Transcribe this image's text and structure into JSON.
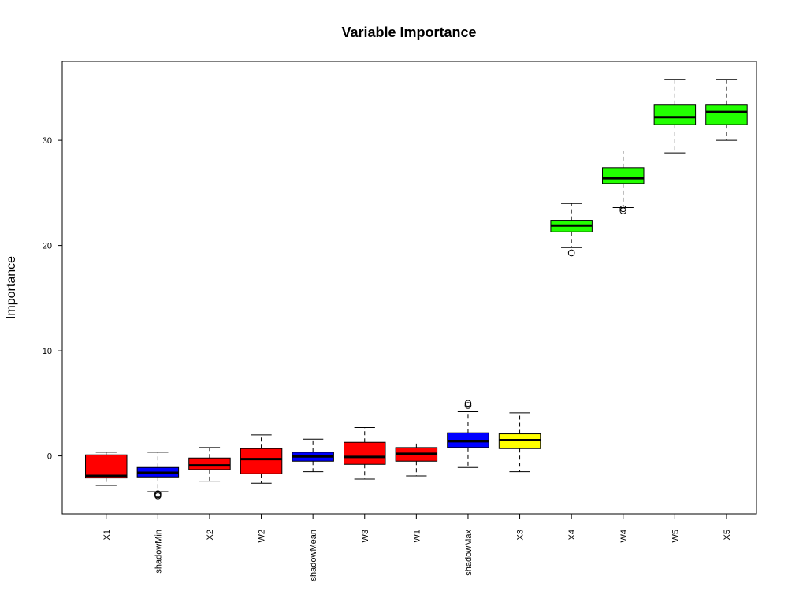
{
  "chart_data": {
    "type": "boxplot",
    "title": "Variable Importance",
    "xlabel": "",
    "ylabel": "Importance",
    "ylim": [
      -5.5,
      37.5
    ],
    "yticks": [
      0,
      10,
      20,
      30
    ],
    "grid": false,
    "legend": "none",
    "colors": {
      "red": "#ff0000",
      "blue": "#0000ff",
      "yellow": "#ffff00",
      "green": "#22ff00"
    },
    "categories": [
      "X1",
      "shadowMin",
      "X2",
      "W2",
      "shadowMean",
      "W3",
      "W1",
      "shadowMax",
      "X3",
      "X4",
      "W4",
      "W5",
      "X5"
    ],
    "boxes": [
      {
        "name": "X1",
        "color": "red",
        "whisker_low": -2.8,
        "q1": -2.1,
        "median": -1.9,
        "q3": 0.1,
        "whisker_high": 0.35,
        "outliers": []
      },
      {
        "name": "shadowMin",
        "color": "blue",
        "whisker_low": -3.4,
        "q1": -2.0,
        "median": -1.6,
        "q3": -1.1,
        "whisker_high": 0.35,
        "outliers": [
          -3.6,
          -3.8,
          -3.7
        ]
      },
      {
        "name": "X2",
        "color": "red",
        "whisker_low": -2.4,
        "q1": -1.3,
        "median": -0.9,
        "q3": -0.2,
        "whisker_high": 0.8,
        "outliers": []
      },
      {
        "name": "W2",
        "color": "red",
        "whisker_low": -2.6,
        "q1": -1.7,
        "median": -0.3,
        "q3": 0.7,
        "whisker_high": 2.0,
        "outliers": []
      },
      {
        "name": "shadowMean",
        "color": "blue",
        "whisker_low": -1.5,
        "q1": -0.5,
        "median": -0.05,
        "q3": 0.35,
        "whisker_high": 1.6,
        "outliers": []
      },
      {
        "name": "W3",
        "color": "red",
        "whisker_low": -2.2,
        "q1": -0.8,
        "median": -0.1,
        "q3": 1.3,
        "whisker_high": 2.7,
        "outliers": []
      },
      {
        "name": "W1",
        "color": "red",
        "whisker_low": -1.9,
        "q1": -0.5,
        "median": 0.2,
        "q3": 0.8,
        "whisker_high": 1.5,
        "outliers": []
      },
      {
        "name": "shadowMax",
        "color": "blue",
        "whisker_low": -1.1,
        "q1": 0.8,
        "median": 1.4,
        "q3": 2.2,
        "whisker_high": 4.2,
        "outliers": [
          4.8,
          5.0
        ]
      },
      {
        "name": "X3",
        "color": "yellow",
        "whisker_low": -1.5,
        "q1": 0.7,
        "median": 1.5,
        "q3": 2.1,
        "whisker_high": 4.1,
        "outliers": []
      },
      {
        "name": "X4",
        "color": "green",
        "whisker_low": 19.8,
        "q1": 21.3,
        "median": 21.9,
        "q3": 22.4,
        "whisker_high": 24.0,
        "outliers": [
          19.3
        ]
      },
      {
        "name": "W4",
        "color": "green",
        "whisker_low": 23.6,
        "q1": 25.9,
        "median": 26.4,
        "q3": 27.4,
        "whisker_high": 29.0,
        "outliers": [
          23.3,
          23.5
        ]
      },
      {
        "name": "W5",
        "color": "green",
        "whisker_low": 28.8,
        "q1": 31.5,
        "median": 32.2,
        "q3": 33.4,
        "whisker_high": 35.8,
        "outliers": []
      },
      {
        "name": "X5",
        "color": "green",
        "whisker_low": 30.0,
        "q1": 31.5,
        "median": 32.7,
        "q3": 33.4,
        "whisker_high": 35.8,
        "outliers": []
      }
    ]
  }
}
